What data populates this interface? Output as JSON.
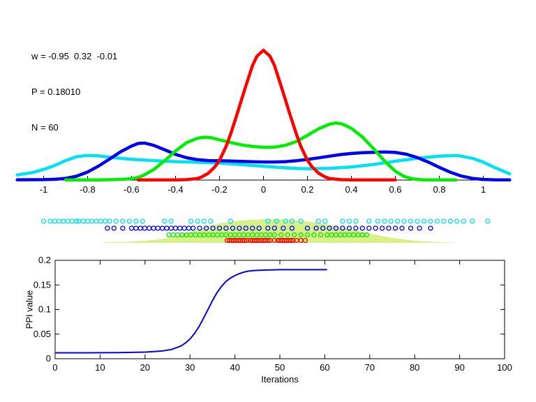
{
  "annotation": {
    "line1": "w = -0.95  0.32  -0.01",
    "line2": "P = 0.18010",
    "line3": "N = 60"
  },
  "colors": {
    "background": "#ffffff",
    "axis": "#000000",
    "red": "#ff0000",
    "green": "#00ee00",
    "blue": "#0000f0",
    "cyan": "#00e2f2",
    "pale_hump": "#d9f089",
    "ppi_line": "#0000e0"
  },
  "chart_data": [
    {
      "id": "density_plot",
      "type": "line",
      "title": "",
      "xlabel": "",
      "ylabel": "",
      "xlim": [
        -1.12,
        1.12
      ],
      "ylim": [
        0,
        1.08
      ],
      "grid": false,
      "x_ticks": [
        -1,
        -0.8,
        -0.6,
        -0.4,
        -0.2,
        0,
        0.2,
        0.4,
        0.6,
        0.8,
        1
      ],
      "x_tick_labels": [
        "-1",
        "-0.8",
        "-0.6",
        "-0.4",
        "-0.2",
        "0",
        "0.2",
        "0.4",
        "0.6",
        "0.8",
        "1"
      ],
      "series": [
        {
          "name": "cyan-density",
          "color": "#00e2f2",
          "width": 4.5,
          "points": [
            [
              -1.12,
              0.04
            ],
            [
              -1.05,
              0.058
            ],
            [
              -1.0,
              0.082
            ],
            [
              -0.95,
              0.112
            ],
            [
              -0.9,
              0.15
            ],
            [
              -0.85,
              0.18
            ],
            [
              -0.8,
              0.19
            ],
            [
              -0.75,
              0.186
            ],
            [
              -0.7,
              0.176
            ],
            [
              -0.65,
              0.168
            ],
            [
              -0.6,
              0.16
            ],
            [
              -0.5,
              0.15
            ],
            [
              -0.4,
              0.142
            ],
            [
              -0.3,
              0.137
            ],
            [
              -0.2,
              0.131
            ],
            [
              -0.1,
              0.12
            ],
            [
              0.0,
              0.106
            ],
            [
              0.1,
              0.094
            ],
            [
              0.15,
              0.089
            ],
            [
              0.2,
              0.087
            ],
            [
              0.3,
              0.09
            ],
            [
              0.4,
              0.101
            ],
            [
              0.5,
              0.12
            ],
            [
              0.6,
              0.145
            ],
            [
              0.7,
              0.168
            ],
            [
              0.8,
              0.184
            ],
            [
              0.88,
              0.19
            ],
            [
              0.95,
              0.168
            ],
            [
              1.0,
              0.138
            ],
            [
              1.05,
              0.098
            ],
            [
              1.12,
              0.048
            ]
          ]
        },
        {
          "name": "blue-density",
          "color": "#0000f0",
          "width": 4.5,
          "points": [
            [
              -1.12,
              0.002
            ],
            [
              -1.0,
              0.003
            ],
            [
              -0.95,
              0.006
            ],
            [
              -0.9,
              0.013
            ],
            [
              -0.85,
              0.03
            ],
            [
              -0.8,
              0.062
            ],
            [
              -0.75,
              0.108
            ],
            [
              -0.7,
              0.162
            ],
            [
              -0.65,
              0.218
            ],
            [
              -0.6,
              0.262
            ],
            [
              -0.57,
              0.282
            ],
            [
              -0.54,
              0.285
            ],
            [
              -0.5,
              0.268
            ],
            [
              -0.45,
              0.234
            ],
            [
              -0.4,
              0.198
            ],
            [
              -0.35,
              0.172
            ],
            [
              -0.3,
              0.157
            ],
            [
              -0.25,
              0.15
            ],
            [
              -0.2,
              0.149
            ],
            [
              -0.15,
              0.147
            ],
            [
              -0.1,
              0.144
            ],
            [
              -0.05,
              0.141
            ],
            [
              0.0,
              0.139
            ],
            [
              0.05,
              0.139
            ],
            [
              0.1,
              0.142
            ],
            [
              0.15,
              0.149
            ],
            [
              0.2,
              0.159
            ],
            [
              0.25,
              0.171
            ],
            [
              0.3,
              0.184
            ],
            [
              0.35,
              0.196
            ],
            [
              0.4,
              0.205
            ],
            [
              0.45,
              0.211
            ],
            [
              0.5,
              0.214
            ],
            [
              0.55,
              0.216
            ],
            [
              0.6,
              0.213
            ],
            [
              0.65,
              0.199
            ],
            [
              0.7,
              0.173
            ],
            [
              0.75,
              0.138
            ],
            [
              0.8,
              0.098
            ],
            [
              0.85,
              0.06
            ],
            [
              0.9,
              0.031
            ],
            [
              0.95,
              0.013
            ],
            [
              1.0,
              0.005
            ],
            [
              1.05,
              0.002
            ],
            [
              1.12,
              0.001
            ]
          ]
        },
        {
          "name": "green-density",
          "color": "#00ee00",
          "width": 4.5,
          "points": [
            [
              -0.9,
              0.001
            ],
            [
              -0.75,
              0.001
            ],
            [
              -0.68,
              0.003
            ],
            [
              -0.62,
              0.008
            ],
            [
              -0.58,
              0.016
            ],
            [
              -0.55,
              0.032
            ],
            [
              -0.5,
              0.08
            ],
            [
              -0.45,
              0.148
            ],
            [
              -0.4,
              0.224
            ],
            [
              -0.35,
              0.288
            ],
            [
              -0.3,
              0.322
            ],
            [
              -0.27,
              0.33
            ],
            [
              -0.24,
              0.327
            ],
            [
              -0.2,
              0.31
            ],
            [
              -0.15,
              0.289
            ],
            [
              -0.1,
              0.271
            ],
            [
              -0.05,
              0.259
            ],
            [
              0.0,
              0.252
            ],
            [
              0.05,
              0.254
            ],
            [
              0.1,
              0.268
            ],
            [
              0.15,
              0.298
            ],
            [
              0.2,
              0.344
            ],
            [
              0.25,
              0.394
            ],
            [
              0.3,
              0.43
            ],
            [
              0.33,
              0.44
            ],
            [
              0.36,
              0.431
            ],
            [
              0.4,
              0.398
            ],
            [
              0.45,
              0.332
            ],
            [
              0.5,
              0.243
            ],
            [
              0.55,
              0.148
            ],
            [
              0.6,
              0.068
            ],
            [
              0.64,
              0.028
            ],
            [
              0.68,
              0.009
            ],
            [
              0.72,
              0.002
            ],
            [
              0.875,
              0.001
            ]
          ]
        },
        {
          "name": "red-density",
          "color": "#ff0000",
          "width": 4.5,
          "points": [
            [
              -0.57,
              0.001
            ],
            [
              -0.4,
              0.001
            ],
            [
              -0.35,
              0.003
            ],
            [
              -0.3,
              0.012
            ],
            [
              -0.28,
              0.024
            ],
            [
              -0.25,
              0.054
            ],
            [
              -0.22,
              0.104
            ],
            [
              -0.2,
              0.152
            ],
            [
              -0.17,
              0.258
            ],
            [
              -0.15,
              0.352
            ],
            [
              -0.12,
              0.508
            ],
            [
              -0.1,
              0.618
            ],
            [
              -0.08,
              0.726
            ],
            [
              -0.05,
              0.882
            ],
            [
              -0.03,
              0.954
            ],
            [
              0.0,
              1.0
            ],
            [
              0.03,
              0.954
            ],
            [
              0.05,
              0.882
            ],
            [
              0.08,
              0.726
            ],
            [
              0.1,
              0.618
            ],
            [
              0.12,
              0.508
            ],
            [
              0.15,
              0.352
            ],
            [
              0.17,
              0.258
            ],
            [
              0.2,
              0.152
            ],
            [
              0.22,
              0.104
            ],
            [
              0.25,
              0.054
            ],
            [
              0.28,
              0.024
            ],
            [
              0.3,
              0.012
            ],
            [
              0.35,
              0.003
            ],
            [
              0.4,
              0.001
            ],
            [
              0.6,
              0.001
            ]
          ]
        }
      ]
    },
    {
      "id": "sample_strip",
      "type": "scatter",
      "marker": "open-circle",
      "background_hump": {
        "color": "#d9f089",
        "points": [
          [
            -0.73,
            0.02
          ],
          [
            -0.6,
            0.05
          ],
          [
            -0.5,
            0.12
          ],
          [
            -0.42,
            0.22
          ],
          [
            -0.35,
            0.4
          ],
          [
            -0.3,
            0.55
          ],
          [
            -0.25,
            0.7
          ],
          [
            -0.2,
            0.82
          ],
          [
            -0.12,
            0.93
          ],
          [
            -0.05,
            0.98
          ],
          [
            0.0,
            1.0
          ],
          [
            0.05,
            1.0
          ],
          [
            0.12,
            0.97
          ],
          [
            0.2,
            0.9
          ],
          [
            0.28,
            0.8
          ],
          [
            0.35,
            0.67
          ],
          [
            0.42,
            0.52
          ],
          [
            0.5,
            0.36
          ],
          [
            0.58,
            0.22
          ],
          [
            0.65,
            0.13
          ],
          [
            0.72,
            0.07
          ],
          [
            0.8,
            0.03
          ],
          [
            0.87,
            0.01
          ]
        ]
      },
      "rows": [
        {
          "name": "cyan-samples",
          "color": "#00e2f2",
          "x": [
            -1.0,
            -0.97,
            -0.95,
            -0.93,
            -0.91,
            -0.89,
            -0.87,
            -0.85,
            -0.84,
            -0.82,
            -0.8,
            -0.78,
            -0.76,
            -0.74,
            -0.72,
            -0.7,
            -0.67,
            -0.64,
            -0.61,
            -0.58,
            -0.55,
            -0.45,
            -0.42,
            -0.33,
            -0.3,
            -0.27,
            -0.24,
            -0.15,
            0.02,
            0.06,
            0.1,
            0.13,
            0.17,
            0.25,
            0.28,
            0.36,
            0.39,
            0.42,
            0.48,
            0.52,
            0.55,
            0.58,
            0.61,
            0.64,
            0.67,
            0.7,
            0.73,
            0.76,
            0.79,
            0.82,
            0.85,
            0.88,
            0.91,
            0.95,
            1.02
          ]
        },
        {
          "name": "blue-samples",
          "color": "#0000f0",
          "x": [
            -0.71,
            -0.68,
            -0.64,
            -0.6,
            -0.58,
            -0.56,
            -0.54,
            -0.52,
            -0.5,
            -0.48,
            -0.46,
            -0.44,
            -0.42,
            -0.4,
            -0.38,
            -0.36,
            -0.34,
            -0.32,
            -0.29,
            -0.26,
            -0.23,
            -0.2,
            -0.17,
            -0.14,
            -0.11,
            -0.08,
            -0.05,
            -0.02,
            0.02,
            0.05,
            0.09,
            0.13,
            0.2,
            0.24,
            0.27,
            0.3,
            0.33,
            0.36,
            0.39,
            0.42,
            0.45,
            0.48,
            0.51,
            0.54,
            0.57,
            0.6,
            0.63,
            0.67,
            0.71,
            0.76
          ]
        },
        {
          "name": "green-samples",
          "color": "#00ee00",
          "x": [
            -0.43,
            -0.41,
            -0.39,
            -0.37,
            -0.35,
            -0.33,
            -0.31,
            -0.29,
            -0.27,
            -0.25,
            -0.23,
            -0.21,
            -0.19,
            -0.17,
            -0.15,
            -0.13,
            -0.11,
            -0.09,
            -0.07,
            -0.05,
            -0.03,
            -0.01,
            0.01,
            0.03,
            0.05,
            0.08,
            0.11,
            0.14,
            0.17,
            0.2,
            0.23,
            0.26,
            0.29,
            0.31,
            0.33,
            0.35,
            0.37,
            0.39,
            0.41,
            0.43,
            0.45,
            0.47
          ]
        },
        {
          "name": "red-samples",
          "color": "#ff0000",
          "x": [
            -0.165,
            -0.155,
            -0.145,
            -0.135,
            -0.125,
            -0.115,
            -0.105,
            -0.095,
            -0.085,
            -0.075,
            -0.06,
            -0.05,
            -0.04,
            -0.03,
            -0.02,
            -0.01,
            0.0,
            0.01,
            0.02,
            0.03,
            0.05,
            0.065,
            0.075,
            0.085,
            0.095,
            0.105,
            0.115,
            0.125,
            0.135,
            0.15,
            0.17,
            0.19
          ]
        }
      ]
    },
    {
      "id": "ppi_plot",
      "type": "line",
      "title": "",
      "xlabel": "Iterations",
      "ylabel": "PPI value",
      "xlim": [
        0,
        100
      ],
      "ylim": [
        0,
        0.2
      ],
      "grid": false,
      "box": true,
      "x_ticks": [
        0,
        10,
        20,
        30,
        40,
        50,
        60,
        70,
        80,
        90,
        100
      ],
      "x_tick_labels": [
        "0",
        "10",
        "20",
        "30",
        "40",
        "50",
        "60",
        "70",
        "80",
        "90",
        "100"
      ],
      "y_ticks": [
        0,
        0.05,
        0.1,
        0.15,
        0.2
      ],
      "y_tick_labels": [
        "0",
        "0.05",
        "0.1",
        "0.15",
        "0.2"
      ],
      "series": [
        {
          "name": "ppi-curve",
          "color": "#0000e0",
          "width": 2,
          "points": [
            [
              0,
              0.012
            ],
            [
              5,
              0.012
            ],
            [
              10,
              0.0122
            ],
            [
              14,
              0.0125
            ],
            [
              18,
              0.013
            ],
            [
              20,
              0.0135
            ],
            [
              22,
              0.0145
            ],
            [
              24,
              0.016
            ],
            [
              26,
              0.019
            ],
            [
              28,
              0.026
            ],
            [
              29,
              0.032
            ],
            [
              30,
              0.04
            ],
            [
              31,
              0.051
            ],
            [
              32,
              0.065
            ],
            [
              33,
              0.082
            ],
            [
              34,
              0.1
            ],
            [
              35,
              0.118
            ],
            [
              36,
              0.134
            ],
            [
              37,
              0.147
            ],
            [
              38,
              0.157
            ],
            [
              39,
              0.164
            ],
            [
              40,
              0.169
            ],
            [
              41,
              0.173
            ],
            [
              42,
              0.176
            ],
            [
              43,
              0.178
            ],
            [
              44,
              0.179
            ],
            [
              46,
              0.18
            ],
            [
              48,
              0.1805
            ],
            [
              50,
              0.181
            ],
            [
              55,
              0.181
            ],
            [
              60.5,
              0.181
            ]
          ]
        }
      ]
    }
  ]
}
